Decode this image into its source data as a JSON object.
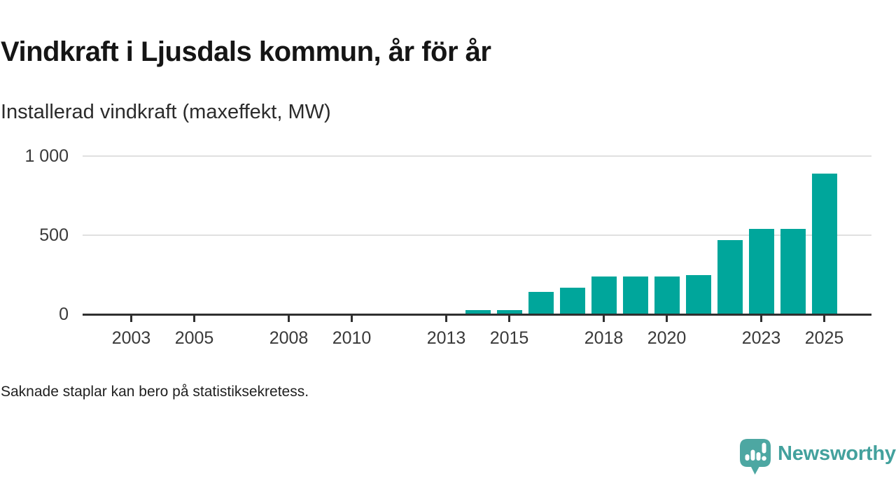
{
  "header": {
    "title": "Vindkraft i Ljusdals kommun, år för år",
    "subtitle": "Installerad vindkraft (maxeffekt, MW)"
  },
  "footnote": "Saknade staplar kan bero på statistiksekretess.",
  "branding": {
    "name": "Newsworthy",
    "logo_icon": "speech-bubble-bar-chart-pin-icon",
    "logo_color": "#4da7a2",
    "wordmark_color": "#43a19d"
  },
  "colors": {
    "background": "#ffffff",
    "bar": "#00a69b",
    "grid": "#e0e0e0",
    "axis": "#2f2f2f",
    "tick_text": "#3a3a3a",
    "title_text": "#151515"
  },
  "chart_data": {
    "type": "bar",
    "title": "Vindkraft i Ljusdals kommun, år för år",
    "subtitle": "Installerad vindkraft (maxeffekt, MW)",
    "unit": "MW",
    "x": [
      2014,
      2015,
      2016,
      2017,
      2018,
      2019,
      2020,
      2021,
      2022,
      2023,
      2024,
      2025
    ],
    "values": [
      25,
      25,
      140,
      170,
      240,
      240,
      240,
      250,
      470,
      540,
      540,
      890
    ],
    "xticks": {
      "positions": [
        2003,
        2005,
        2008,
        2010,
        2013,
        2015,
        2018,
        2020,
        2023,
        2025
      ],
      "labels": [
        "2003",
        "2005",
        "2008",
        "2010",
        "2013",
        "2015",
        "2018",
        "2020",
        "2023",
        "2025"
      ]
    },
    "yticks": {
      "positions": [
        0,
        500,
        1000
      ],
      "labels": [
        "0",
        "500",
        "1 000"
      ]
    },
    "xlim": [
      2001.5,
      2026.5
    ],
    "ylim": [
      0,
      1000
    ],
    "grid": "horizontal-only",
    "legend": "none",
    "bar_color": "#00a69b"
  }
}
